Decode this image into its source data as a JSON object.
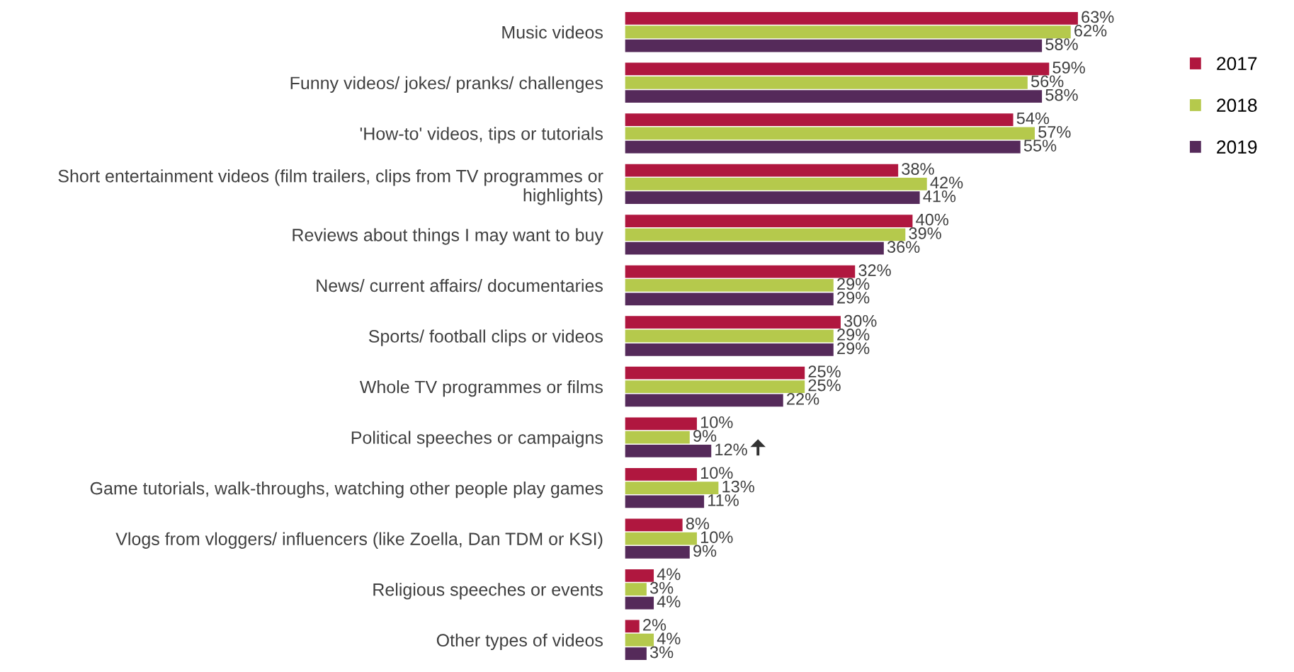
{
  "chart_data": {
    "type": "bar",
    "orientation": "horizontal",
    "legend": "top right",
    "grid": false,
    "categories": [
      "Music videos",
      "Funny videos/ jokes/ pranks/ challenges",
      "'How-to' videos, tips or tutorials",
      "Short entertainment videos (film trailers, clips from TV programmes or\nhighlights)",
      "Reviews about things I may want to buy",
      "News/ current affairs/ documentaries",
      "Sports/ football clips or videos",
      "Whole TV programmes or films",
      "Political speeches or campaigns",
      "Game tutorials, walk-throughs, watching other people play games",
      "Vlogs from vloggers/ influencers (like Zoella, Dan TDM or KSI)",
      "Religious speeches or events",
      "Other types of videos"
    ],
    "series": [
      {
        "name": "2017",
        "color": "#b0173f",
        "values": [
          63,
          59,
          54,
          38,
          40,
          32,
          30,
          25,
          10,
          10,
          8,
          4,
          2
        ],
        "value_labels": [
          "63%",
          "59%",
          "54%",
          "38%",
          "40%",
          "32%",
          "30%",
          "25%",
          "10%",
          "10%",
          "8%",
          "4%",
          "2%"
        ]
      },
      {
        "name": "2018",
        "color": "#b5c94c",
        "values": [
          62,
          56,
          57,
          42,
          39,
          29,
          29,
          25,
          9,
          13,
          10,
          3,
          4
        ],
        "value_labels": [
          "62%",
          "56%",
          "57%",
          "42%",
          "39%",
          "29%",
          "29%",
          "25%",
          "9%",
          "13%",
          "10%",
          "3%",
          "4%"
        ]
      },
      {
        "name": "2019",
        "color": "#552a5a",
        "values": [
          58,
          58,
          55,
          41,
          36,
          29,
          29,
          22,
          12,
          11,
          9,
          4,
          3
        ],
        "value_labels": [
          "58%",
          "58%",
          "55%",
          "41%",
          "36%",
          "29%",
          "29%",
          "22%",
          "12%",
          "11%",
          "9%",
          "4%",
          "3%"
        ]
      }
    ]
  }
}
